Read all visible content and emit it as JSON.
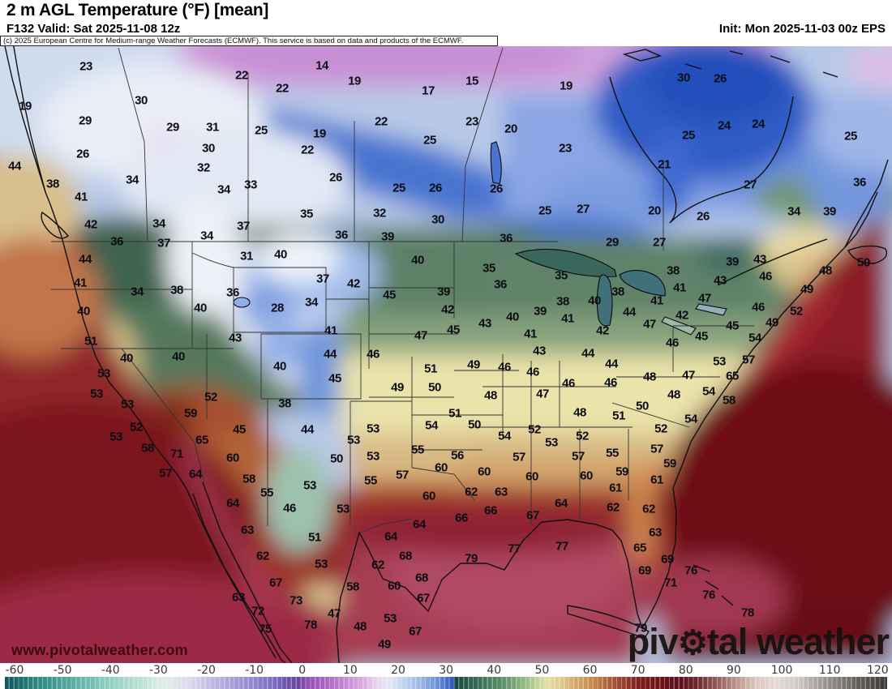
{
  "header": {
    "title": "2 m AGL Temperature (°F) [mean]",
    "valid": "F132 Valid: Sat 2025-11-08 12z",
    "init": "Init: Mon 2025-11-03 00z EPS",
    "copyright": "(c) 2025 European Centre for Medium-range Weather Forecasts (ECMWF). This service is based on data and products of the ECMWF."
  },
  "watermark": {
    "url": "www.pivotalweather.com",
    "logo_pre": "piv",
    "logo_gear": "⚙",
    "logo_post": "tal weather"
  },
  "colorbar": {
    "min": -62,
    "max": 122,
    "ticks": [
      "-60",
      "-50",
      "-40",
      "-30",
      "-20",
      "-10",
      "0",
      "10",
      "20",
      "30",
      "40",
      "50",
      "60",
      "70",
      "80",
      "90",
      "100",
      "110",
      "120"
    ],
    "tick_x0": 18,
    "tick_dx": 59.13,
    "stops": [
      {
        "v": -62,
        "c": "#0e555a"
      },
      {
        "v": -55,
        "c": "#2d8a83"
      },
      {
        "v": -48,
        "c": "#58aca0"
      },
      {
        "v": -41,
        "c": "#89ccbe"
      },
      {
        "v": -34,
        "c": "#b9dfd2"
      },
      {
        "v": -29,
        "c": "#dfede4"
      },
      {
        "v": -24,
        "c": "#dedced"
      },
      {
        "v": -18,
        "c": "#bcb4e2"
      },
      {
        "v": -12,
        "c": "#9c90d3"
      },
      {
        "v": -6,
        "c": "#7d6cc2"
      },
      {
        "v": -1,
        "c": "#64449f"
      },
      {
        "v": 1,
        "c": "#9150b4"
      },
      {
        "v": 5,
        "c": "#ae64c2"
      },
      {
        "v": 9,
        "c": "#c886d3"
      },
      {
        "v": 13,
        "c": "#ddafe0"
      },
      {
        "v": 16,
        "c": "#ecd7ee"
      },
      {
        "v": 18,
        "c": "#e3e7f4"
      },
      {
        "v": 21,
        "c": "#c3d4ee"
      },
      {
        "v": 25,
        "c": "#97b3e3"
      },
      {
        "v": 28,
        "c": "#6d92d8"
      },
      {
        "v": 30.5,
        "c": "#4168c8"
      },
      {
        "v": 31.5,
        "c": "#2f57c0"
      },
      {
        "v": 32,
        "c": "#15473c"
      },
      {
        "v": 35,
        "c": "#2c6150"
      },
      {
        "v": 39,
        "c": "#457e5e"
      },
      {
        "v": 43,
        "c": "#68986e"
      },
      {
        "v": 46,
        "c": "#8fb680"
      },
      {
        "v": 49,
        "c": "#bdd395"
      },
      {
        "v": 51,
        "c": "#e2e0a6"
      },
      {
        "v": 54,
        "c": "#e0c98e"
      },
      {
        "v": 57,
        "c": "#d4a96c"
      },
      {
        "v": 61,
        "c": "#c28449"
      },
      {
        "v": 64,
        "c": "#ad5d36"
      },
      {
        "v": 67,
        "c": "#97402a"
      },
      {
        "v": 70,
        "c": "#821f1c"
      },
      {
        "v": 74,
        "c": "#701313"
      },
      {
        "v": 79,
        "c": "#5e0f1d"
      },
      {
        "v": 83,
        "c": "#6f2f30"
      },
      {
        "v": 87,
        "c": "#9a625c"
      },
      {
        "v": 91,
        "c": "#c09a92"
      },
      {
        "v": 95,
        "c": "#dcc9c2"
      },
      {
        "v": 99,
        "c": "#e5dad4"
      },
      {
        "v": 103,
        "c": "#d3cac6"
      },
      {
        "v": 107,
        "c": "#ada5a2"
      },
      {
        "v": 112,
        "c": "#837c79"
      },
      {
        "v": 117,
        "c": "#5b5553"
      },
      {
        "v": 122,
        "c": "#3d3937"
      }
    ]
  },
  "map": {
    "unit": "°F",
    "values": [
      [
        106,
        82,
        23
      ],
      [
        298,
        93,
        22
      ],
      [
        397,
        81,
        14
      ],
      [
        437,
        100,
        19
      ],
      [
        348,
        109,
        22
      ],
      [
        528,
        112,
        17
      ],
      [
        582,
        100,
        15
      ],
      [
        698,
        106,
        19
      ],
      [
        843,
        96,
        30
      ],
      [
        888,
        97,
        26
      ],
      [
        31,
        131,
        19
      ],
      [
        174,
        124,
        30
      ],
      [
        105,
        149,
        29
      ],
      [
        213,
        157,
        29
      ],
      [
        262,
        157,
        31
      ],
      [
        322,
        161,
        25
      ],
      [
        394,
        165,
        19
      ],
      [
        470,
        150,
        22
      ],
      [
        530,
        173,
        25
      ],
      [
        582,
        150,
        23
      ],
      [
        630,
        159,
        20
      ],
      [
        102,
        190,
        26
      ],
      [
        257,
        183,
        30
      ],
      [
        379,
        185,
        22
      ],
      [
        251,
        207,
        32
      ],
      [
        18,
        205,
        44
      ],
      [
        163,
        222,
        34
      ],
      [
        309,
        228,
        33
      ],
      [
        276,
        234,
        34
      ],
      [
        414,
        219,
        26
      ],
      [
        492,
        232,
        25
      ],
      [
        537,
        232,
        26
      ],
      [
        65,
        227,
        38
      ],
      [
        100,
        243,
        41
      ],
      [
        893,
        155,
        24
      ],
      [
        935,
        153,
        24
      ],
      [
        849,
        167,
        25
      ],
      [
        1049,
        168,
        25
      ],
      [
        697,
        183,
        23
      ],
      [
        819,
        203,
        21
      ],
      [
        925,
        228,
        27
      ],
      [
        1060,
        225,
        36
      ],
      [
        612,
        233,
        26
      ],
      [
        112,
        277,
        42
      ],
      [
        196,
        276,
        34
      ],
      [
        255,
        291,
        34
      ],
      [
        300,
        279,
        37
      ],
      [
        378,
        264,
        35
      ],
      [
        468,
        263,
        32
      ],
      [
        540,
        271,
        30
      ],
      [
        421,
        290,
        36
      ],
      [
        478,
        292,
        39
      ],
      [
        144,
        298,
        36
      ],
      [
        202,
        300,
        37
      ],
      [
        672,
        260,
        25
      ],
      [
        719,
        258,
        27
      ],
      [
        807,
        260,
        20
      ],
      [
        867,
        267,
        26
      ],
      [
        979,
        261,
        34
      ],
      [
        1023,
        261,
        39
      ],
      [
        755,
        299,
        29
      ],
      [
        813,
        299,
        27
      ],
      [
        624,
        294,
        36
      ],
      [
        105,
        320,
        44
      ],
      [
        304,
        316,
        31
      ],
      [
        346,
        314,
        40
      ],
      [
        515,
        321,
        40
      ],
      [
        99,
        349,
        41
      ],
      [
        169,
        360,
        34
      ],
      [
        218,
        358,
        38
      ],
      [
        287,
        361,
        36
      ],
      [
        398,
        344,
        37
      ],
      [
        436,
        350,
        42
      ],
      [
        480,
        364,
        45
      ],
      [
        547,
        360,
        39
      ],
      [
        103,
        384,
        40
      ],
      [
        247,
        380,
        40
      ],
      [
        342,
        380,
        28
      ],
      [
        384,
        373,
        34
      ],
      [
        408,
        408,
        41
      ],
      [
        519,
        414,
        47
      ],
      [
        290,
        417,
        43
      ],
      [
        112,
        421,
        51
      ],
      [
        603,
        331,
        35
      ],
      [
        617,
        351,
        36
      ],
      [
        692,
        340,
        35
      ],
      [
        762,
        360,
        38
      ],
      [
        830,
        334,
        38
      ],
      [
        903,
        323,
        39
      ],
      [
        937,
        320,
        43
      ],
      [
        1018,
        334,
        48
      ],
      [
        1065,
        324,
        50
      ],
      [
        838,
        355,
        41
      ],
      [
        888,
        346,
        43
      ],
      [
        944,
        341,
        46
      ],
      [
        995,
        357,
        49
      ],
      [
        869,
        368,
        47
      ],
      [
        694,
        372,
        38
      ],
      [
        733,
        371,
        40
      ],
      [
        810,
        371,
        41
      ],
      [
        935,
        379,
        46
      ],
      [
        982,
        384,
        52
      ],
      [
        666,
        384,
        39
      ],
      [
        632,
        391,
        40
      ],
      [
        598,
        399,
        43
      ],
      [
        700,
        393,
        41
      ],
      [
        776,
        385,
        44
      ],
      [
        801,
        400,
        47
      ],
      [
        841,
        389,
        42
      ],
      [
        903,
        402,
        45
      ],
      [
        952,
        398,
        49
      ],
      [
        743,
        408,
        42
      ],
      [
        654,
        412,
        41
      ],
      [
        865,
        415,
        45
      ],
      [
        931,
        417,
        54
      ],
      [
        829,
        423,
        46
      ],
      [
        552,
        382,
        42
      ],
      [
        559,
        407,
        45
      ],
      [
        156,
        442,
        40
      ],
      [
        220,
        440,
        40
      ],
      [
        345,
        452,
        40
      ],
      [
        407,
        437,
        44
      ],
      [
        460,
        437,
        46
      ],
      [
        531,
        455,
        51
      ],
      [
        413,
        467,
        45
      ],
      [
        490,
        478,
        49
      ],
      [
        536,
        478,
        50
      ],
      [
        665,
        433,
        43
      ],
      [
        725,
        436,
        44
      ],
      [
        754,
        449,
        44
      ],
      [
        887,
        446,
        53
      ],
      [
        923,
        444,
        57
      ],
      [
        903,
        464,
        65
      ],
      [
        584,
        450,
        49
      ],
      [
        622,
        453,
        46
      ],
      [
        657,
        459,
        46
      ],
      [
        701,
        473,
        46
      ],
      [
        753,
        472,
        46
      ],
      [
        801,
        465,
        48
      ],
      [
        849,
        463,
        47
      ],
      [
        874,
        483,
        54
      ],
      [
        128,
        461,
        53
      ],
      [
        119,
        486,
        53
      ],
      [
        260,
        490,
        52
      ],
      [
        351,
        498,
        38
      ],
      [
        157,
        499,
        53
      ],
      [
        235,
        510,
        59
      ],
      [
        168,
        527,
        52
      ],
      [
        460,
        529,
        53
      ],
      [
        532,
        525,
        54
      ],
      [
        379,
        530,
        44
      ],
      [
        295,
        530,
        45
      ],
      [
        249,
        543,
        65
      ],
      [
        143,
        539,
        53
      ],
      [
        436,
        543,
        53
      ],
      [
        605,
        488,
        48
      ],
      [
        669,
        486,
        47
      ],
      [
        831,
        487,
        48
      ],
      [
        899,
        494,
        58
      ],
      [
        792,
        501,
        50
      ],
      [
        561,
        510,
        51
      ],
      [
        715,
        509,
        48
      ],
      [
        763,
        513,
        51
      ],
      [
        585,
        524,
        50
      ],
      [
        852,
        517,
        54
      ],
      [
        815,
        529,
        52
      ],
      [
        622,
        538,
        54
      ],
      [
        659,
        530,
        52
      ],
      [
        718,
        538,
        52
      ],
      [
        680,
        546,
        53
      ],
      [
        182,
        553,
        58
      ],
      [
        218,
        560,
        71
      ],
      [
        287,
        565,
        60
      ],
      [
        415,
        566,
        50
      ],
      [
        460,
        563,
        53
      ],
      [
        515,
        555,
        55
      ],
      [
        204,
        584,
        57
      ],
      [
        241,
        585,
        64
      ],
      [
        307,
        591,
        58
      ],
      [
        329,
        608,
        55
      ],
      [
        382,
        599,
        53
      ],
      [
        457,
        593,
        55
      ],
      [
        496,
        586,
        57
      ],
      [
        544,
        577,
        60
      ],
      [
        287,
        621,
        64
      ],
      [
        357,
        627,
        46
      ],
      [
        423,
        628,
        53
      ],
      [
        529,
        612,
        60
      ],
      [
        517,
        647,
        64
      ],
      [
        305,
        654,
        63
      ],
      [
        388,
        663,
        51
      ],
      [
        482,
        662,
        64
      ],
      [
        324,
        686,
        62
      ],
      [
        396,
        696,
        53
      ],
      [
        466,
        697,
        62
      ],
      [
        500,
        686,
        68
      ],
      [
        340,
        719,
        67
      ],
      [
        435,
        724,
        58
      ],
      [
        486,
        723,
        60
      ],
      [
        520,
        713,
        68
      ],
      [
        365,
        741,
        73
      ],
      [
        294,
        737,
        63
      ],
      [
        522,
        738,
        67
      ],
      [
        412,
        757,
        47
      ],
      [
        318,
        754,
        72
      ],
      [
        481,
        763,
        53
      ],
      [
        444,
        773,
        48
      ],
      [
        383,
        771,
        78
      ],
      [
        327,
        776,
        75
      ],
      [
        512,
        779,
        67
      ],
      [
        474,
        795,
        49
      ],
      [
        564,
        562,
        56
      ],
      [
        640,
        564,
        57
      ],
      [
        713,
        563,
        57
      ],
      [
        755,
        559,
        55
      ],
      [
        810,
        554,
        57
      ],
      [
        826,
        572,
        59
      ],
      [
        597,
        582,
        60
      ],
      [
        656,
        588,
        60
      ],
      [
        723,
        587,
        60
      ],
      [
        767,
        582,
        59
      ],
      [
        810,
        592,
        61
      ],
      [
        581,
        607,
        62
      ],
      [
        618,
        607,
        63
      ],
      [
        759,
        602,
        61
      ],
      [
        692,
        621,
        64
      ],
      [
        605,
        630,
        66
      ],
      [
        569,
        639,
        66
      ],
      [
        657,
        636,
        67
      ],
      [
        756,
        626,
        62
      ],
      [
        800,
        628,
        62
      ],
      [
        808,
        657,
        63
      ],
      [
        789,
        676,
        65
      ],
      [
        634,
        677,
        77
      ],
      [
        693,
        674,
        77
      ],
      [
        581,
        689,
        79
      ],
      [
        823,
        690,
        69
      ],
      [
        795,
        704,
        69
      ],
      [
        852,
        704,
        76
      ],
      [
        827,
        719,
        71
      ],
      [
        874,
        734,
        76
      ],
      [
        922,
        756,
        78
      ],
      [
        790,
        775,
        79
      ]
    ]
  }
}
